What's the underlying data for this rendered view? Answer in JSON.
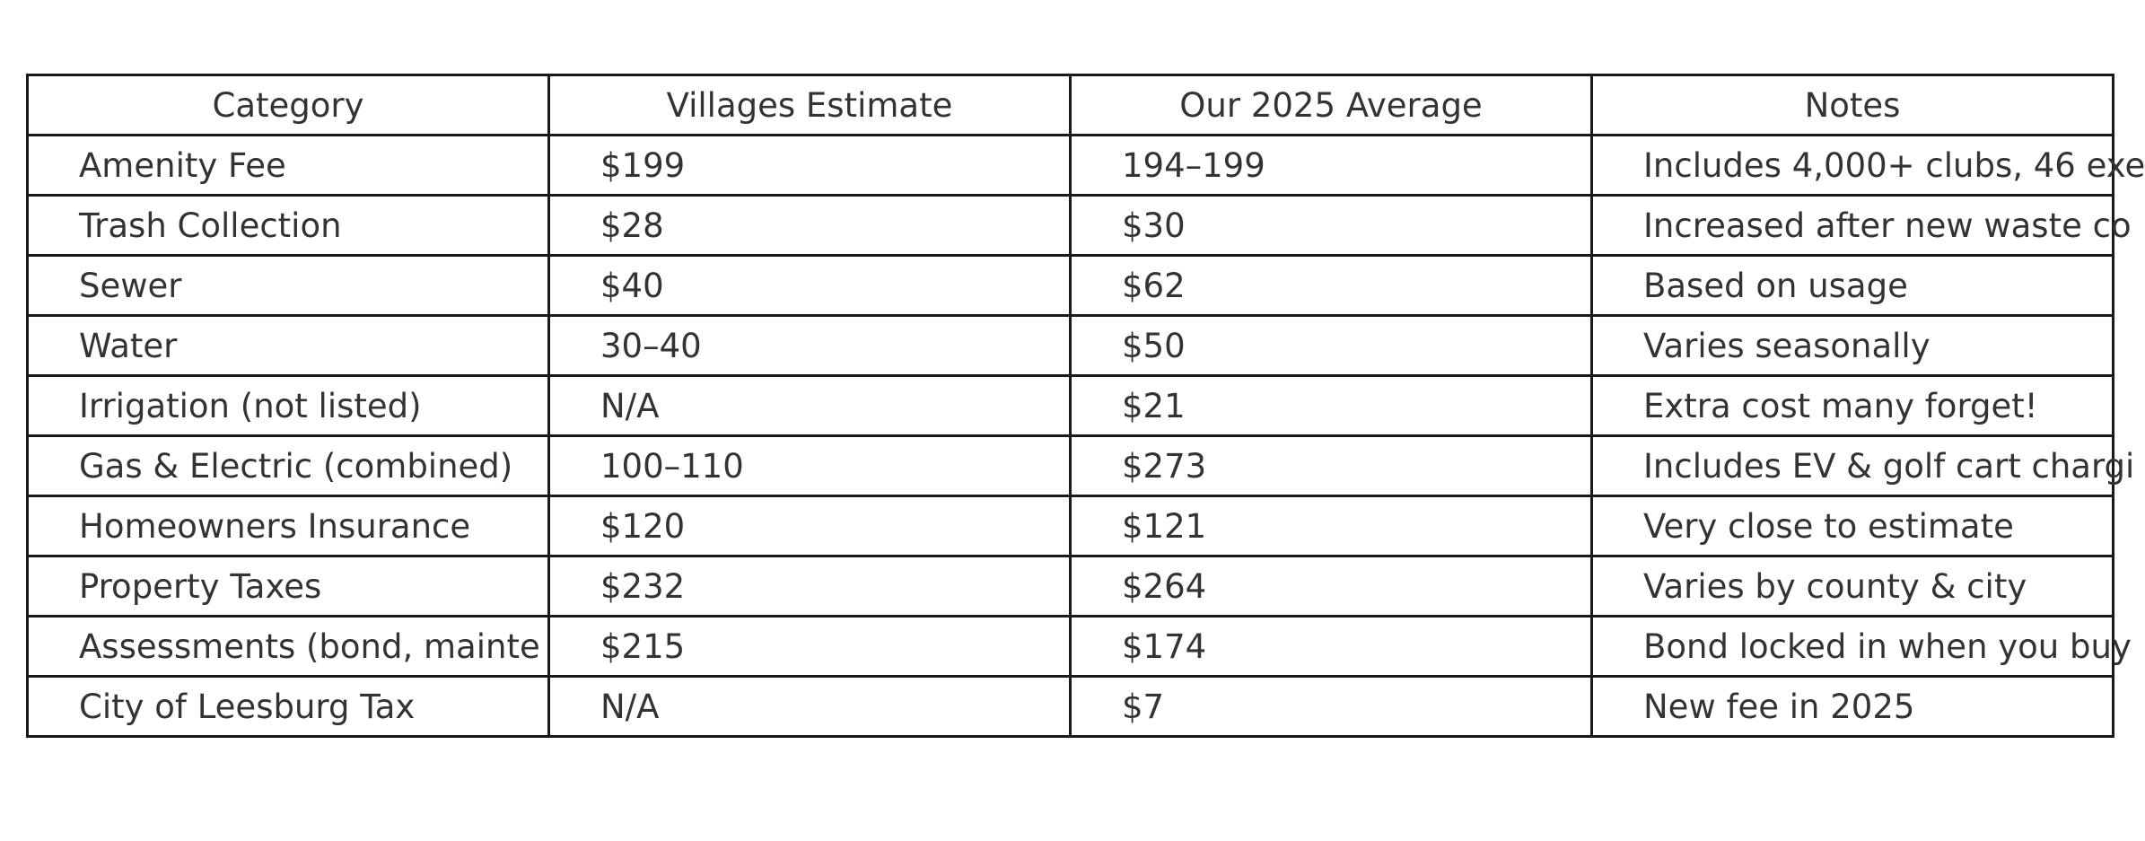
{
  "table": {
    "headers": [
      "Category",
      "Villages Estimate",
      "Our 2025 Average",
      "Notes"
    ],
    "rows": [
      [
        "Amenity Fee",
        "$199",
        "194–199",
        "Includes 4,000+ clubs, 46 exe"
      ],
      [
        "Trash Collection",
        "$28",
        "$30",
        "Increased after new waste co"
      ],
      [
        "Sewer",
        "$40",
        "$62",
        "Based on usage"
      ],
      [
        "Water",
        "30–40",
        "$50",
        "Varies seasonally"
      ],
      [
        "Irrigation (not listed)",
        "N/A",
        "$21",
        "Extra cost many forget!"
      ],
      [
        "Gas & Electric (combined)",
        "100–110",
        "$273",
        "Includes EV & golf cart chargi"
      ],
      [
        "Homeowners Insurance",
        "$120",
        "$121",
        "Very close to estimate"
      ],
      [
        "Property Taxes",
        "$232",
        "$264",
        "Varies by county & city"
      ],
      [
        "Assessments (bond, mainte",
        "$215",
        "$174",
        "Bond locked in when you buy"
      ],
      [
        "City of Leesburg Tax",
        "N/A",
        "$7",
        "New fee in 2025"
      ]
    ]
  }
}
